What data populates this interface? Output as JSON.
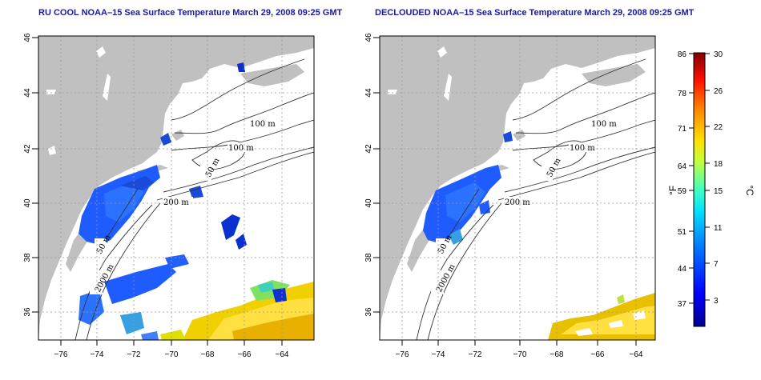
{
  "panels": [
    {
      "title": "RU COOL NOAA–15 Sea Surface Temperature March 29, 2008 09:25 GMT"
    },
    {
      "title": "DECLOUDED NOAA–15 Sea Surface Temperature March 29, 2008 09:25 GMT"
    }
  ],
  "axes": {
    "lat_ticks": [
      "46",
      "44",
      "42",
      "40",
      "38",
      "36"
    ],
    "lon_ticks": [
      "−76",
      "−74",
      "−72",
      "−70",
      "−68",
      "−66",
      "−64"
    ]
  },
  "isobaths": {
    "left": [
      "100 m",
      "100 m",
      "50 m",
      "200 m",
      "50 m",
      "2000 m"
    ],
    "right": [
      "100 m",
      "100 m",
      "50 m",
      "200 m",
      "50 m",
      "2000 m"
    ]
  },
  "colorbar": {
    "fahrenheit_ticks": [
      "86",
      "78",
      "71",
      "64",
      "59",
      "51",
      "44",
      "37"
    ],
    "celsius_ticks": [
      "30",
      "26",
      "22",
      "18",
      "15",
      "11",
      "7",
      "3"
    ],
    "fahrenheit_unit": "°F",
    "celsius_unit": "°C",
    "range_c": [
      0,
      30
    ]
  },
  "colors": {
    "land": "#c0c0c0",
    "sea": "#ffffff",
    "title": "#1a1aa0"
  }
}
